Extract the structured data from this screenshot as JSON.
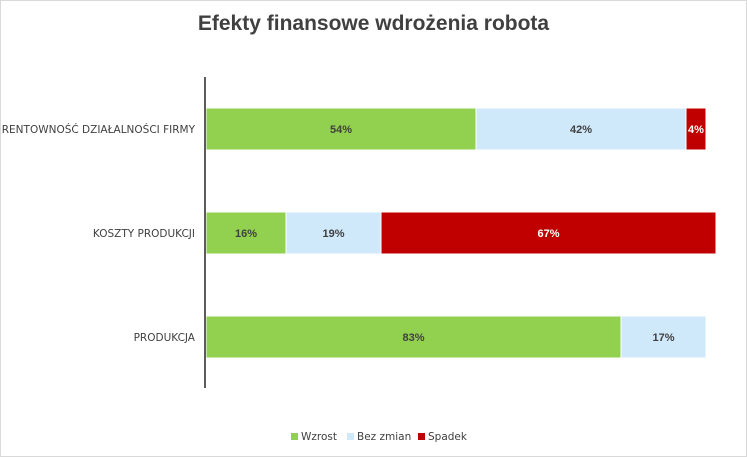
{
  "chart_data": {
    "type": "bar",
    "orientation": "horizontal",
    "stacked": "percent",
    "title": "Efekty finansowe wdrożenia robota",
    "categories": [
      "RENTOWNOŚĆ DZIAŁALNOŚCI FIRMY",
      "KOSZTY PRODUKCJI",
      "PRODUKCJA"
    ],
    "series": [
      {
        "name": "Wzrost",
        "color": "#92d050",
        "values": [
          54,
          16,
          83
        ],
        "labels": [
          "54%",
          "16%",
          "83%"
        ]
      },
      {
        "name": "Bez zmian",
        "color": "#cfe9fb",
        "values": [
          42,
          19,
          17
        ],
        "labels": [
          "42%",
          "19%",
          "17%"
        ]
      },
      {
        "name": "Spadek",
        "color": "#c00000",
        "values": [
          4,
          67,
          0
        ],
        "labels": [
          "4%",
          "67%",
          ""
        ]
      }
    ],
    "xlim": [
      0,
      100
    ],
    "grid": false,
    "legend": "bottom"
  }
}
